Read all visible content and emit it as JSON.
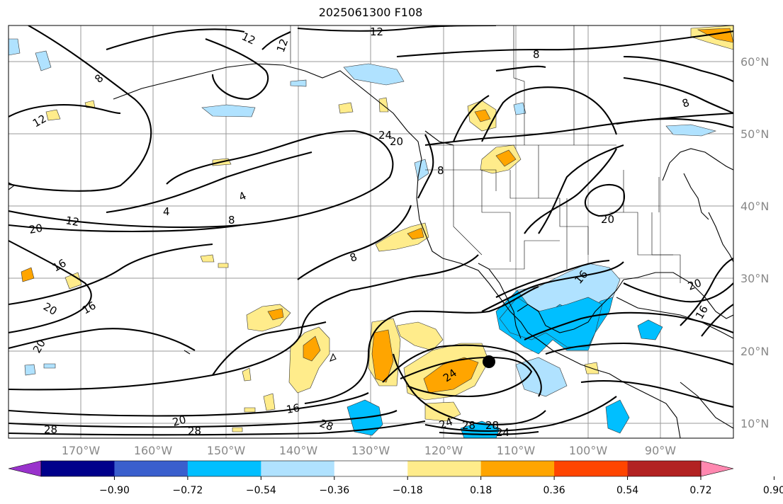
{
  "title": "2025061300 F108",
  "lon_labels": [
    "170°W",
    "160°W",
    "150°W",
    "140°W",
    "130°W",
    "120°W",
    "110°W",
    "100°W",
    "90°W"
  ],
  "lat_labels": [
    "10°N",
    "20°N",
    "30°N",
    "40°N",
    "50°N",
    "60°N"
  ],
  "colorbar": {
    "colors": [
      "#9932cc",
      "#00008b",
      "#3a5fcd",
      "#00bfff",
      "#b0e2ff",
      "#ffffff",
      "#ffec8b",
      "#ffa500",
      "#ff4500",
      "#b22222",
      "#ff88b0"
    ],
    "ticks": [
      "−0.90",
      "−0.72",
      "−0.54",
      "−0.36",
      "−0.18",
      "0.18",
      "0.36",
      "0.54",
      "0.72",
      "0.90"
    ]
  },
  "contour_labels": [
    {
      "text": "12"
    },
    {
      "text": "12"
    },
    {
      "text": "12"
    },
    {
      "text": "8"
    },
    {
      "text": "12"
    },
    {
      "text": "8"
    },
    {
      "text": "8"
    },
    {
      "text": "4"
    },
    {
      "text": "4"
    },
    {
      "text": "12"
    },
    {
      "text": "8"
    },
    {
      "text": "20"
    },
    {
      "text": "8"
    },
    {
      "text": "20"
    },
    {
      "text": "16"
    },
    {
      "text": "16"
    },
    {
      "text": "20"
    },
    {
      "text": "16"
    },
    {
      "text": "20"
    },
    {
      "text": "16"
    },
    {
      "text": "24"
    },
    {
      "text": "24"
    },
    {
      "text": "28"
    },
    {
      "text": "28"
    },
    {
      "text": "20"
    },
    {
      "text": "28"
    },
    {
      "text": "24"
    },
    {
      "text": "28"
    },
    {
      "text": "28"
    },
    {
      "text": "24"
    },
    {
      "text": "20"
    },
    {
      "text": "16"
    },
    {
      "text": "20"
    },
    {
      "text": "8"
    },
    {
      "text": "4"
    }
  ]
}
